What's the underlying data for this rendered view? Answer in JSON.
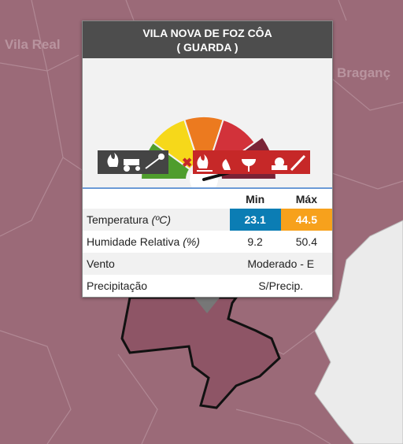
{
  "map": {
    "labels": [
      "Vila Real",
      "Braganç"
    ]
  },
  "popup": {
    "title": "VILA NOVA DE FOZ CÔA",
    "subtitle": "( GUARDA )",
    "table": {
      "headers": [
        "Min",
        "Máx"
      ],
      "rows": [
        {
          "label": "Temperatura",
          "unit": "(ºC)",
          "min": 23.1,
          "max": 44.5
        },
        {
          "label": "Humidade Relativa",
          "unit": "(%)",
          "min": 9.2,
          "max": 50.4
        },
        {
          "label": "Vento",
          "value": "Moderado - E"
        },
        {
          "label": "Precipitação",
          "value": "S/Precip."
        }
      ]
    }
  }
}
